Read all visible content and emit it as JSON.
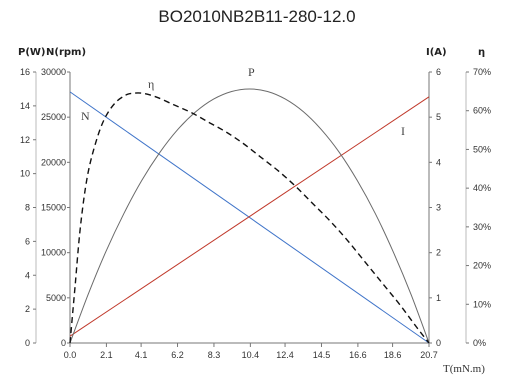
{
  "chart_data": {
    "type": "line",
    "title": "BO2010NB2B11-280-12.0",
    "xlabel": "T(mN.m)",
    "x_ticks": [
      "0.0",
      "2.1",
      "4.1",
      "6.2",
      "8.3",
      "10.4",
      "12.4",
      "14.5",
      "16.6",
      "18.6",
      "20.7"
    ],
    "xlim": [
      0,
      20.7
    ],
    "axes": {
      "power": {
        "label": "P(W)",
        "ylim": [
          0,
          16
        ],
        "ticks": [
          "0",
          "2",
          "4",
          "6",
          "8",
          "10",
          "12",
          "14",
          "16"
        ]
      },
      "speed": {
        "label": "N(rpm)",
        "ylim": [
          0,
          30000
        ],
        "ticks": [
          "0",
          "5000",
          "10000",
          "15000",
          "20000",
          "25000",
          "30000"
        ]
      },
      "current": {
        "label": "I(A)",
        "ylim": [
          0,
          6
        ],
        "ticks": [
          "0",
          "1",
          "2",
          "3",
          "4",
          "5",
          "6"
        ]
      },
      "efficiency": {
        "label": "η",
        "ylim": [
          0,
          70
        ],
        "ticks": [
          "0%",
          "10%",
          "20%",
          "30%",
          "40%",
          "50%",
          "60%",
          "70%"
        ]
      }
    },
    "series": [
      {
        "name": "N",
        "axis": "speed",
        "color": "#3f74c9",
        "style": "solid",
        "x": [
          0,
          20.7
        ],
        "y": [
          27800,
          0
        ]
      },
      {
        "name": "I",
        "axis": "current",
        "color": "#c0392b",
        "style": "solid",
        "x": [
          0,
          20.7
        ],
        "y": [
          0.15,
          5.45
        ]
      },
      {
        "name": "P",
        "axis": "power",
        "color": "#6b6b6b",
        "style": "solid",
        "x": [
          0,
          1.04,
          2.07,
          3.11,
          4.14,
          5.18,
          6.21,
          7.25,
          8.28,
          9.32,
          10.35,
          11.39,
          12.42,
          13.46,
          14.49,
          15.53,
          16.56,
          17.6,
          18.63,
          19.67,
          20.7
        ],
        "y": [
          0,
          2.85,
          5.4,
          7.65,
          9.6,
          11.25,
          12.6,
          13.65,
          14.4,
          14.85,
          15.0,
          14.85,
          14.4,
          13.65,
          12.6,
          11.25,
          9.6,
          7.65,
          5.4,
          2.85,
          0
        ]
      },
      {
        "name": "η",
        "axis": "efficiency",
        "color": "#111111",
        "style": "dashed",
        "x": [
          0.3,
          0.6,
          1.0,
          1.5,
          2.0,
          2.6,
          3.2,
          3.6,
          4.2,
          5.0,
          6.0,
          7.0,
          8.0,
          9.0,
          10.0,
          11.0,
          12.0,
          13.0,
          14.0,
          15.0,
          16.0,
          17.0,
          18.0,
          19.0,
          20.0,
          20.7
        ],
        "y": [
          15,
          30,
          43,
          52,
          58,
          62,
          64,
          64.5,
          64.5,
          63.5,
          61.5,
          59.5,
          57,
          54.5,
          51.5,
          48,
          44.5,
          40.5,
          36,
          31.5,
          26.5,
          21,
          15.5,
          10,
          4,
          0
        ]
      }
    ]
  }
}
